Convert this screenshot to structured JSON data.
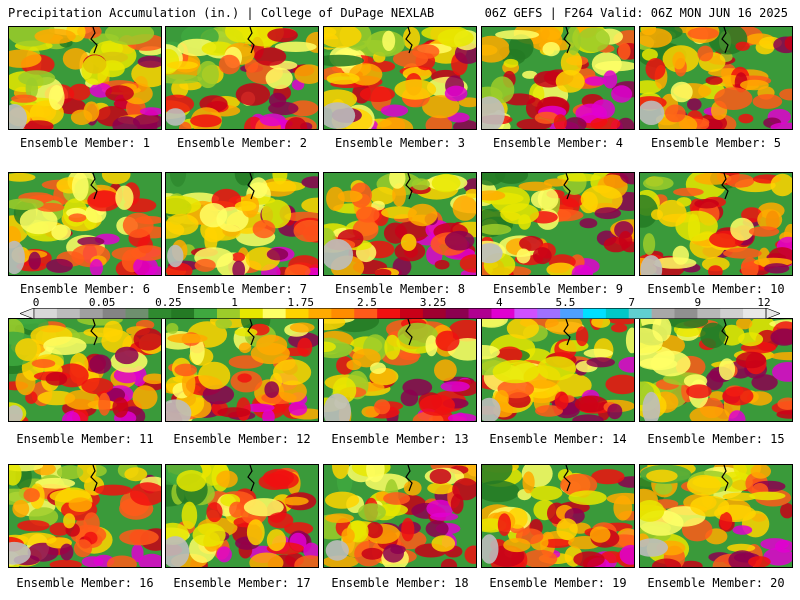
{
  "header": {
    "title": "Precipitation Accumulation (in.) | College of DuPage NEXLAB",
    "run_info": "06Z GEFS | F264 Valid: 06Z MON JUN 16 2025"
  },
  "colorbar": {
    "ticks": [
      "0",
      "0.05",
      "0.25",
      "1",
      "1.75",
      "2.5",
      "3.25",
      "4",
      "5.5",
      "7",
      "9",
      "12"
    ],
    "colors": [
      "#d8d8d8",
      "#bcbcbc",
      "#a0a0a0",
      "#848484",
      "#6e8f6e",
      "#2f8a2f",
      "#247a24",
      "#3fa83f",
      "#9ccc2a",
      "#e8e800",
      "#ffff66",
      "#ffd300",
      "#ffaa00",
      "#ff8c00",
      "#ff5a1a",
      "#f01010",
      "#c80018",
      "#a00030",
      "#8c0050",
      "#b00090",
      "#e000d0",
      "#d050ff",
      "#a070ff",
      "#4fa0ff",
      "#00e0ff",
      "#00c8c8",
      "#60d0d0",
      "#a8a8a8",
      "#909090",
      "#b8b8b8",
      "#d0d0d0",
      "#e8e8e8"
    ]
  },
  "members": [
    {
      "label": "Ensemble Member: 1"
    },
    {
      "label": "Ensemble Member: 2"
    },
    {
      "label": "Ensemble Member: 3"
    },
    {
      "label": "Ensemble Member: 4"
    },
    {
      "label": "Ensemble Member: 5"
    },
    {
      "label": "Ensemble Member: 6"
    },
    {
      "label": "Ensemble Member: 7"
    },
    {
      "label": "Ensemble Member: 8"
    },
    {
      "label": "Ensemble Member: 9"
    },
    {
      "label": "Ensemble Member: 10"
    },
    {
      "label": "Ensemble Member: 11"
    },
    {
      "label": "Ensemble Member: 12"
    },
    {
      "label": "Ensemble Member: 13"
    },
    {
      "label": "Ensemble Member: 14"
    },
    {
      "label": "Ensemble Member: 15"
    },
    {
      "label": "Ensemble Member: 16"
    },
    {
      "label": "Ensemble Member: 17"
    },
    {
      "label": "Ensemble Member: 18"
    },
    {
      "label": "Ensemble Member: 19"
    },
    {
      "label": "Ensemble Member: 20"
    }
  ]
}
